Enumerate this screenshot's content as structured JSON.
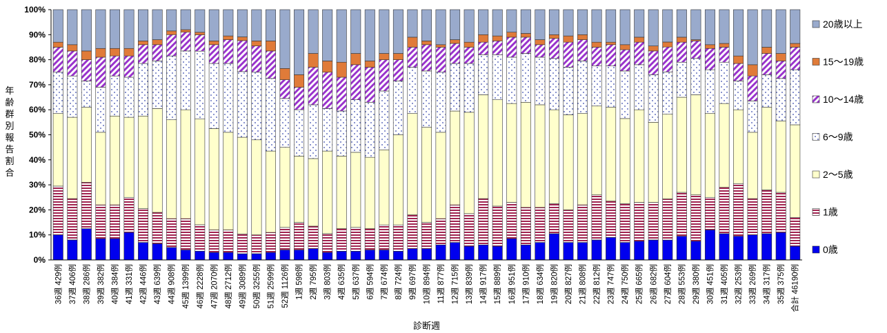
{
  "chart_data": {
    "type": "bar",
    "stacked": true,
    "percent": true,
    "ylabel": "年齢群別報告割合",
    "xlabel": "診断週",
    "ylim": [
      0,
      100
    ],
    "yticks": [
      "0%",
      "10%",
      "20%",
      "30%",
      "40%",
      "50%",
      "60%",
      "70%",
      "80%",
      "90%",
      "100%"
    ],
    "grid": false,
    "legend_position": "right",
    "categories": [
      "36週 429例",
      "37週 406例",
      "38週 286例",
      "39週 382例",
      "40週 384例",
      "41週 331例",
      "42週 446例",
      "43週 639例",
      "44週 908例",
      "45週 1399例",
      "46週 2228例",
      "47週 2070例",
      "48週 2712例",
      "49週 3089例",
      "50週 3255例",
      "51週 2599例",
      "52週 1126例",
      "1週 598例",
      "2週 795例",
      "3週 803例",
      "4週 635例",
      "5週 637例",
      "6週 594例",
      "7週 674例",
      "8週 724例",
      "9週 697例",
      "10週 894例",
      "11週 877例",
      "12週 715例",
      "13週 839例",
      "14週 917例",
      "15週 889例",
      "16週 951例",
      "17週 910例",
      "18週 634例",
      "19週 820例",
      "20週 827例",
      "21週 808例",
      "22週 812例",
      "23週 747例",
      "24週 750例",
      "25週 665例",
      "26週 682例",
      "27週 604例",
      "28週 553例",
      "29週 380例",
      "30週 451例",
      "31週 405例",
      "32週 253例",
      "33週 269例",
      "34週 317例",
      "35週 375例",
      "合計 46190例"
    ],
    "series": [
      {
        "name": "0歳",
        "color": "#0000ee",
        "values": [
          10,
          8,
          12.5,
          8.5,
          8.5,
          11,
          7,
          6.5,
          5,
          4,
          3.5,
          3,
          3,
          2.5,
          2.5,
          3,
          4,
          4,
          4.5,
          3,
          3.5,
          3.5,
          4,
          4,
          3.5,
          4.5,
          4.5,
          6,
          7,
          5.5,
          6,
          5.5,
          8.5,
          6,
          7,
          10.5,
          7,
          7,
          8,
          9,
          7,
          7.5,
          8,
          8,
          9.5,
          7.5,
          12,
          10.5,
          9.5,
          10,
          10.5,
          11,
          5.5
        ]
      },
      {
        "name": "1歳",
        "color": "#a0224f",
        "values": [
          19.5,
          16.5,
          18.5,
          13.5,
          13.5,
          14,
          13.5,
          12.5,
          11.5,
          12.5,
          10.5,
          9,
          9,
          8,
          7.5,
          8,
          9,
          11,
          9,
          7.5,
          9,
          9.5,
          8.5,
          10,
          10.5,
          13.5,
          10.5,
          10.5,
          15,
          13,
          18.5,
          16,
          14.5,
          15,
          14,
          12,
          13,
          15,
          18,
          14.5,
          15.5,
          15.5,
          15,
          16.5,
          17.5,
          18.5,
          13,
          18.5,
          21,
          14.5,
          17.5,
          16,
          11.5
        ]
      },
      {
        "name": "2～5歳",
        "color": "#ffffcc",
        "values": [
          29,
          32.5,
          30,
          29,
          35.5,
          32,
          37,
          41.5,
          39.5,
          43.5,
          42,
          40.5,
          39,
          39,
          38,
          32.5,
          32,
          26.5,
          27,
          33,
          29,
          30,
          28.5,
          30,
          36,
          40.5,
          38,
          34.5,
          37.5,
          40.5,
          41.5,
          42.5,
          39.5,
          42,
          41,
          37.5,
          38,
          36.5,
          35.5,
          37.5,
          34,
          37,
          32,
          34,
          38,
          40,
          33.5,
          33.5,
          29.5,
          26.5,
          33,
          28.5,
          37
        ]
      },
      {
        "name": "6～9歳",
        "color": "#ffffff",
        "values": [
          16.5,
          16.5,
          10.5,
          18,
          16,
          16,
          21,
          19,
          25.5,
          23.5,
          27,
          26,
          27.5,
          26.5,
          27,
          29,
          19.5,
          18.5,
          21.5,
          17,
          18,
          21,
          22,
          23.5,
          21.5,
          18.5,
          22.5,
          24,
          19,
          19.5,
          16,
          18,
          18.5,
          19.5,
          19,
          20.5,
          19,
          21,
          16,
          16.5,
          19,
          18,
          19,
          17,
          14,
          14.5,
          17.5,
          16.5,
          11.5,
          12.5,
          13,
          17,
          22
        ]
      },
      {
        "name": "10～14歳",
        "color": "#9933cc",
        "values": [
          10,
          10,
          8.5,
          12,
          8,
          8.5,
          7.5,
          6.5,
          8.5,
          7.5,
          6.5,
          7.5,
          9.5,
          12.5,
          10.5,
          11,
          7.5,
          9,
          15,
          14.5,
          13.5,
          14,
          14,
          12.5,
          8.5,
          8,
          10.5,
          10,
          8,
          6.5,
          5,
          5.5,
          8,
          6.5,
          5,
          8,
          10,
          8.5,
          7.5,
          8.5,
          8.5,
          9,
          9.5,
          10,
          8,
          7,
          8.5,
          6,
          7,
          10,
          8.5,
          7,
          9
        ]
      },
      {
        "name": "15～19歳",
        "color": "#e07b39",
        "values": [
          2,
          2.5,
          3.5,
          3.5,
          3,
          3,
          1.5,
          2,
          1.5,
          1,
          1,
          1.5,
          1.5,
          1.5,
          2,
          4,
          4.5,
          5,
          5.5,
          4.5,
          6,
          4.5,
          2.5,
          2.5,
          2.5,
          4,
          1.5,
          1,
          1.5,
          2,
          3,
          2,
          2,
          1.5,
          2,
          1.5,
          2.5,
          2,
          2,
          1,
          2,
          2,
          2,
          2,
          2,
          0.5,
          1.5,
          1.5,
          3,
          4.5,
          2.5,
          3,
          1.5
        ]
      },
      {
        "name": "20歳以上",
        "color": "#99aacc",
        "values": [
          13,
          14,
          16.5,
          15.5,
          15.5,
          15.5,
          12.5,
          12,
          8.5,
          8,
          9,
          12.5,
          10.5,
          11,
          12.5,
          12.5,
          23.5,
          26,
          17.5,
          20.5,
          21,
          17.5,
          20.5,
          17.5,
          17.5,
          11,
          12.5,
          14,
          12,
          13,
          10,
          10.5,
          9,
          9.5,
          12,
          10,
          10.5,
          10,
          13,
          13,
          14,
          11,
          14.5,
          13,
          11,
          12,
          14,
          13.5,
          18.5,
          22,
          15,
          17.5,
          13.5
        ]
      }
    ]
  }
}
